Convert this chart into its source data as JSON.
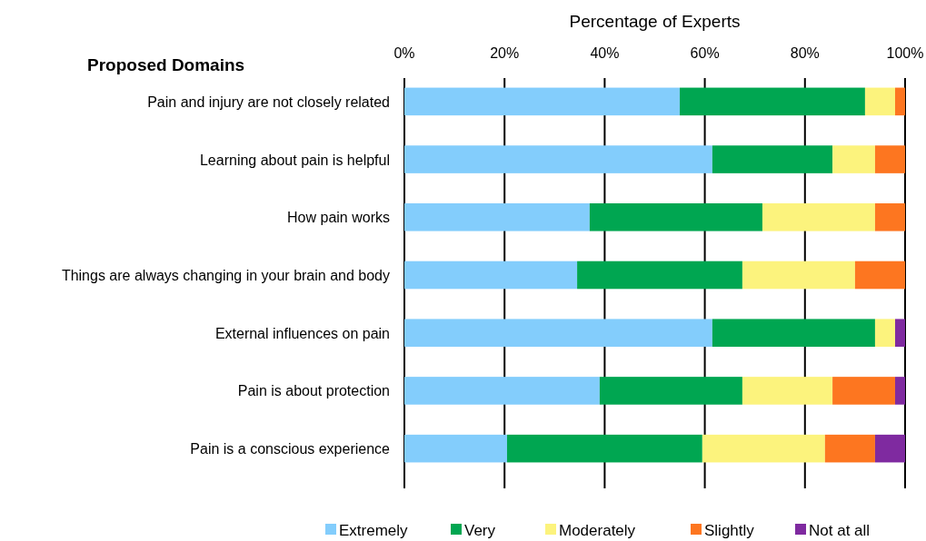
{
  "chart_data": {
    "type": "bar",
    "orientation": "horizontal",
    "stacked": true,
    "xlabel": "Percentage of Experts",
    "ylabel": "Proposed Domains",
    "categories": [
      "Pain and injury are not closely related",
      "Learning about pain is helpful",
      "How pain works",
      "Things are always changing in your brain and body",
      "External influences on pain",
      "Pain is about protection",
      "Pain is a conscious experience"
    ],
    "series": [
      {
        "name": "Extremely",
        "color": "#83cdfc",
        "values": [
          55,
          61.5,
          37,
          34.5,
          61.5,
          39,
          20.5
        ]
      },
      {
        "name": "Very",
        "color": "#00a651",
        "values": [
          37,
          24,
          34.5,
          33,
          32.5,
          28.5,
          39
        ]
      },
      {
        "name": "Moderately",
        "color": "#fcf37d",
        "values": [
          6,
          8.5,
          22.5,
          22.5,
          4,
          18,
          24.5
        ]
      },
      {
        "name": "Slightly",
        "color": "#fd7620",
        "values": [
          2,
          6,
          6,
          10,
          0,
          12.5,
          10
        ]
      },
      {
        "name": "Not at all",
        "color": "#7f2aa0",
        "values": [
          0,
          0,
          0,
          0,
          2,
          2,
          6
        ]
      }
    ],
    "xlim": [
      0,
      100
    ],
    "xticks": [
      {
        "value": 0,
        "label": "0%"
      },
      {
        "value": 20,
        "label": "20%"
      },
      {
        "value": 40,
        "label": "40%"
      },
      {
        "value": 60,
        "label": "60%"
      },
      {
        "value": 80,
        "label": "80%"
      },
      {
        "value": 100,
        "label": "100%"
      }
    ],
    "grid": "x",
    "legend": "bottom"
  }
}
